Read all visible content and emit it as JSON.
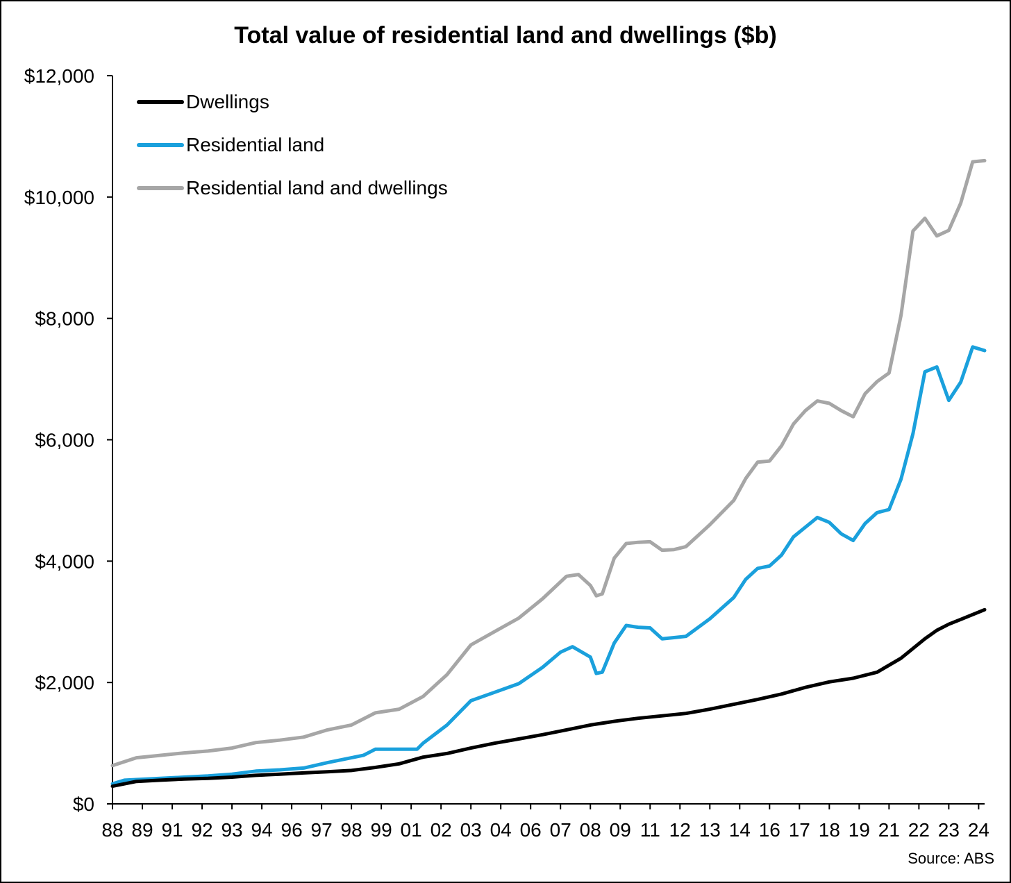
{
  "chart_data": {
    "type": "line",
    "title": "Total value of residential land and dwellings ($b)",
    "xlabel": "",
    "ylabel": "",
    "source": "Source: ABS",
    "ylim": [
      0,
      12000
    ],
    "y_ticks": [
      0,
      2000,
      4000,
      6000,
      8000,
      10000,
      12000
    ],
    "y_tick_labels": [
      "$0",
      "$2,000",
      "$4,000",
      "$6,000",
      "$8,000",
      "$10,000",
      "$12,000"
    ],
    "x_range": [
      1988.0,
      2024.5
    ],
    "x_ticks": [
      1988.0,
      1989.25,
      1990.5,
      1991.75,
      1993.0,
      1994.25,
      1995.5,
      1996.75,
      1998.0,
      1999.25,
      2000.5,
      2001.75,
      2003.0,
      2004.25,
      2005.5,
      2006.75,
      2008.0,
      2009.25,
      2010.5,
      2011.75,
      2013.0,
      2014.25,
      2015.5,
      2016.75,
      2018.0,
      2019.25,
      2020.5,
      2021.75,
      2023.0,
      2024.25
    ],
    "x_tick_labels": [
      "88",
      "89",
      "91",
      "92",
      "93",
      "94",
      "96",
      "97",
      "98",
      "99",
      "01",
      "02",
      "03",
      "04",
      "06",
      "07",
      "08",
      "09",
      "11",
      "12",
      "13",
      "14",
      "16",
      "17",
      "18",
      "19",
      "21",
      "22",
      "23",
      "24"
    ],
    "legend_position": "top-left",
    "series": [
      {
        "name": "Dwellings",
        "color": "#000000",
        "x": [
          1988.0,
          1989.0,
          1990.0,
          1991.0,
          1992.0,
          1993.0,
          1994.0,
          1995.0,
          1996.0,
          1997.0,
          1998.0,
          1999.0,
          2000.0,
          2001.0,
          2002.0,
          2003.0,
          2004.0,
          2005.0,
          2006.0,
          2007.0,
          2008.0,
          2009.0,
          2010.0,
          2011.0,
          2012.0,
          2013.0,
          2014.0,
          2015.0,
          2016.0,
          2017.0,
          2018.0,
          2019.0,
          2020.0,
          2021.0,
          2021.5,
          2022.0,
          2022.5,
          2023.0,
          2023.5,
          2024.0,
          2024.5
        ],
        "values": [
          290,
          370,
          390,
          410,
          420,
          440,
          470,
          490,
          510,
          530,
          550,
          600,
          660,
          770,
          830,
          920,
          1000,
          1070,
          1140,
          1220,
          1300,
          1360,
          1410,
          1450,
          1490,
          1560,
          1640,
          1720,
          1810,
          1920,
          2010,
          2070,
          2170,
          2400,
          2560,
          2720,
          2860,
          2960,
          3040,
          3120,
          3200
        ]
      },
      {
        "name": "Residential land",
        "color": "#1aa0dc",
        "x": [
          1988.0,
          1988.5,
          1989.0,
          1990.0,
          1991.0,
          1992.0,
          1993.0,
          1994.0,
          1995.0,
          1996.0,
          1997.0,
          1998.0,
          1998.5,
          1999.0,
          2000.0,
          2000.75,
          2001.0,
          2002.0,
          2003.0,
          2004.0,
          2005.0,
          2006.0,
          2006.75,
          2007.25,
          2008.0,
          2008.25,
          2008.5,
          2009.0,
          2009.5,
          2010.0,
          2010.5,
          2011.0,
          2011.5,
          2012.0,
          2013.0,
          2014.0,
          2014.5,
          2015.0,
          2015.5,
          2016.0,
          2016.5,
          2017.0,
          2017.5,
          2018.0,
          2018.5,
          2019.0,
          2019.5,
          2020.0,
          2020.5,
          2021.0,
          2021.5,
          2022.0,
          2022.5,
          2023.0,
          2023.5,
          2024.0,
          2024.5
        ],
        "values": [
          330,
          390,
          400,
          420,
          440,
          460,
          490,
          540,
          560,
          590,
          680,
          760,
          800,
          900,
          900,
          900,
          1000,
          1300,
          1700,
          1840,
          1980,
          2250,
          2500,
          2590,
          2420,
          2150,
          2170,
          2650,
          2940,
          2910,
          2900,
          2720,
          2740,
          2760,
          3050,
          3400,
          3700,
          3880,
          3920,
          4100,
          4400,
          4560,
          4720,
          4640,
          4450,
          4340,
          4620,
          4800,
          4850,
          5350,
          6100,
          7120,
          7200,
          6650,
          6950,
          7530,
          7470
        ]
      },
      {
        "name": "Residential land and dwellings",
        "color": "#a6a6a6",
        "x": [
          1988.0,
          1989.0,
          1990.0,
          1991.0,
          1992.0,
          1993.0,
          1994.0,
          1995.0,
          1996.0,
          1997.0,
          1998.0,
          1999.0,
          2000.0,
          2001.0,
          2002.0,
          2003.0,
          2004.0,
          2005.0,
          2006.0,
          2007.0,
          2007.5,
          2008.0,
          2008.25,
          2008.5,
          2009.0,
          2009.5,
          2010.0,
          2010.5,
          2011.0,
          2011.5,
          2012.0,
          2013.0,
          2014.0,
          2014.5,
          2015.0,
          2015.5,
          2016.0,
          2016.5,
          2017.0,
          2017.5,
          2018.0,
          2018.5,
          2019.0,
          2019.5,
          2020.0,
          2020.5,
          2021.0,
          2021.5,
          2022.0,
          2022.5,
          2023.0,
          2023.5,
          2024.0,
          2024.5
        ],
        "values": [
          630,
          760,
          800,
          840,
          870,
          920,
          1010,
          1050,
          1100,
          1220,
          1300,
          1500,
          1560,
          1770,
          2130,
          2620,
          2840,
          3060,
          3380,
          3750,
          3780,
          3600,
          3430,
          3460,
          4050,
          4290,
          4310,
          4320,
          4180,
          4190,
          4240,
          4600,
          5000,
          5360,
          5630,
          5650,
          5900,
          6260,
          6480,
          6640,
          6600,
          6480,
          6380,
          6760,
          6960,
          7100,
          8050,
          9440,
          9650,
          9360,
          9450,
          9900,
          10580,
          10600
        ]
      }
    ]
  }
}
